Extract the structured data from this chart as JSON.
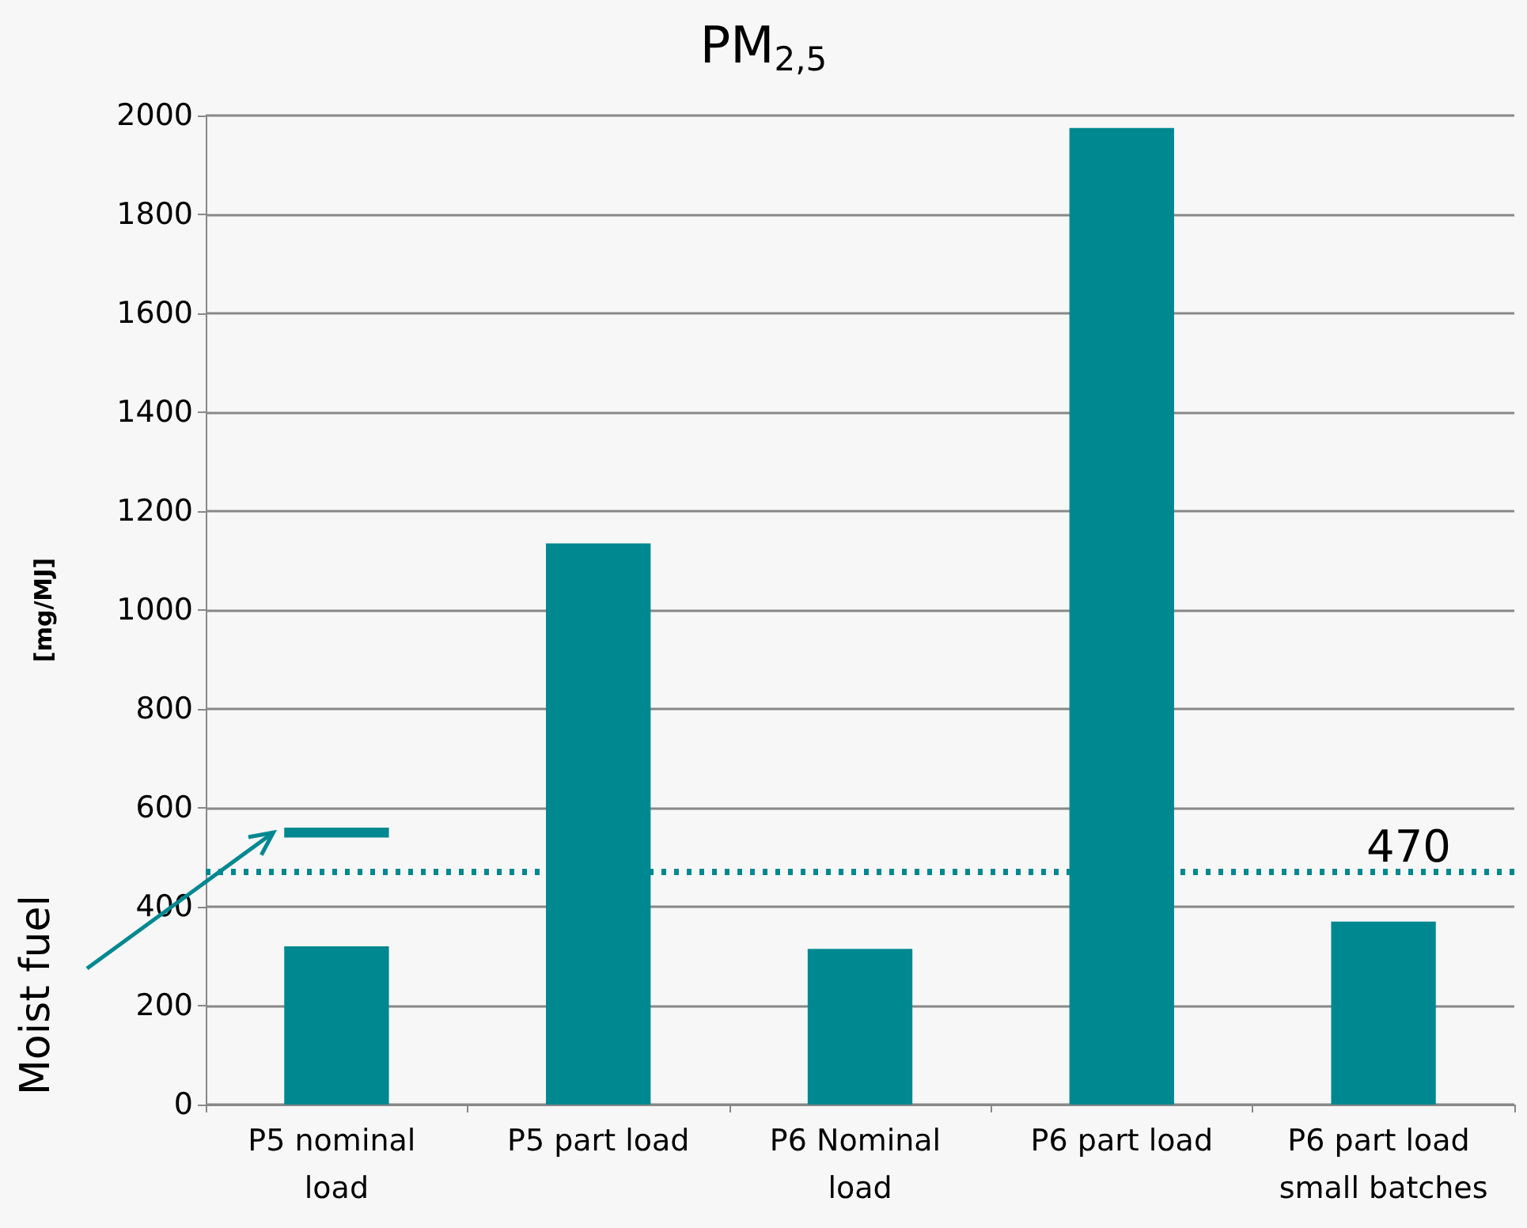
{
  "chart_data": {
    "type": "bar",
    "title": "PM$_{2,5}$",
    "ylabel": "[mg/MJ]",
    "categories": [
      "P5 nominal load",
      "P5 part load",
      "P6 Nominal load",
      "P6 part load",
      "P6 part load small batches"
    ],
    "series": [
      {
        "color": "#008891",
        "values": [
          320,
          1135,
          315,
          1975,
          370
        ]
      },
      {
        "color": "#008891",
        "base": [
          540,
          null,
          null,
          null,
          null
        ],
        "values": [
          20,
          null,
          null,
          null,
          null
        ]
      }
    ],
    "ylim": [
      0,
      2000
    ],
    "yticks": [
      0,
      200,
      400,
      600,
      800,
      1000,
      1200,
      1400,
      1600,
      1800,
      2000
    ],
    "grid": "y",
    "ref_lines": [
      {
        "axis": "y",
        "value": 470,
        "label": "470",
        "color": "#008891",
        "line_style": "dotted"
      }
    ],
    "annotations": [
      "Moist fuel"
    ]
  }
}
